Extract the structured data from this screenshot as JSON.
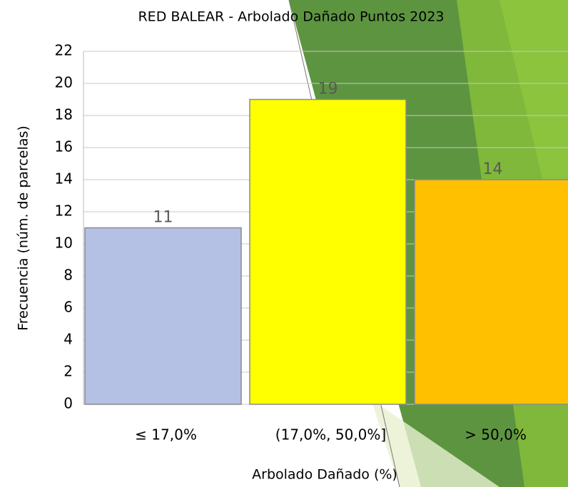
{
  "chart_data": {
    "type": "bar",
    "title": "RED BALEAR - Arbolado Dañado Puntos 2023",
    "x_label": "Arbolado Dañado (%)",
    "y_label": "Frecuencia (núm. de parcelas)",
    "categories": [
      "≤ 17,0%",
      "(17,0%, 50,0%]",
      "> 50,0%"
    ],
    "values": [
      11,
      19,
      14
    ],
    "colors": [
      "#b4c0e4",
      "#ffff00",
      "#ffc000"
    ],
    "ylim": [
      0,
      22
    ],
    "yticks": [
      0,
      2,
      4,
      6,
      8,
      10,
      12,
      14,
      16,
      18,
      20,
      22
    ],
    "grid": true
  }
}
